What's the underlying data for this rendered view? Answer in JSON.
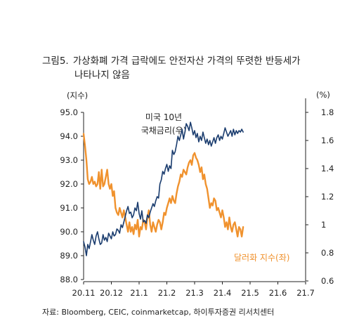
{
  "figure": {
    "number": "그림5.",
    "title_line1": "가상화폐 가격 급락에도 안전자산 가격의 뚜렷한 반등세가",
    "title_line2": "나타나지 않음",
    "left_unit": "(지수)",
    "right_unit": "(%)",
    "annotation_rate_line1": "미국 10년",
    "annotation_rate_line2": "국채금리(우)",
    "annotation_dollar": "달러화 지수(좌)",
    "source": "자료: Bloomberg, CEIC, coinmarketcap, 하이투자증권 리서치센터"
  },
  "colors": {
    "dollar": "#f0922e",
    "rate": "#1a3c6e",
    "axis": "#222222",
    "text": "#222222"
  },
  "chart_data": {
    "type": "line",
    "title": "가상화폐 가격 급락에도 안전자산 가격의 뚜렷한 반등세가 나타나지 않음",
    "x_tick_labels": [
      "20.11",
      "20.12",
      "21.1",
      "21.2",
      "21.3",
      "21.4",
      "21.5",
      "21.6",
      "21.7"
    ],
    "x_unit": "month index (0 = 20.11)",
    "xlim": [
      0,
      8
    ],
    "y_left": {
      "label": "(지수)",
      "ylim": [
        88.0,
        95.0
      ],
      "ticks": [
        "88.0",
        "89.0",
        "90.0",
        "91.0",
        "92.0",
        "93.0",
        "94.0",
        "95.0"
      ]
    },
    "y_right": {
      "label": "(%)",
      "ylim": [
        0.6,
        1.9
      ],
      "ticks": [
        "0.6",
        "0.8",
        "1",
        "1.2",
        "1.4",
        "1.6",
        "1.8"
      ]
    },
    "series": [
      {
        "name": "달러화 지수(좌)",
        "axis": "left",
        "color": "#f0922e",
        "x": [
          0.0,
          0.05,
          0.1,
          0.15,
          0.2,
          0.25,
          0.3,
          0.35,
          0.4,
          0.45,
          0.5,
          0.55,
          0.6,
          0.65,
          0.7,
          0.75,
          0.8,
          0.85,
          0.9,
          0.95,
          1.0,
          1.05,
          1.1,
          1.15,
          1.2,
          1.25,
          1.3,
          1.35,
          1.4,
          1.45,
          1.5,
          1.55,
          1.6,
          1.65,
          1.7,
          1.75,
          1.8,
          1.85,
          1.9,
          1.95,
          2.0,
          2.05,
          2.1,
          2.15,
          2.2,
          2.25,
          2.3,
          2.35,
          2.4,
          2.45,
          2.5,
          2.55,
          2.6,
          2.65,
          2.7,
          2.75,
          2.8,
          2.85,
          2.9,
          2.95,
          3.0,
          3.05,
          3.1,
          3.15,
          3.2,
          3.25,
          3.3,
          3.35,
          3.4,
          3.45,
          3.5,
          3.55,
          3.6,
          3.65,
          3.7,
          3.75,
          3.8,
          3.85,
          3.9,
          3.95,
          4.0,
          4.05,
          4.1,
          4.15,
          4.2,
          4.25,
          4.3,
          4.35,
          4.4,
          4.45,
          4.5,
          4.55,
          4.6,
          4.65,
          4.7,
          4.75,
          4.8,
          4.85,
          4.9,
          4.95,
          5.0,
          5.05,
          5.1,
          5.15,
          5.2,
          5.25,
          5.3,
          5.35,
          5.4,
          5.45,
          5.5,
          5.55,
          5.6,
          5.65,
          5.7,
          5.75
        ],
        "values": [
          94.1,
          93.6,
          93.0,
          92.2,
          92.0,
          92.1,
          92.3,
          92.0,
          92.1,
          91.9,
          92.0,
          92.5,
          91.8,
          92.6,
          91.9,
          92.0,
          92.3,
          92.6,
          92.0,
          91.8,
          92.0,
          91.5,
          91.7,
          91.0,
          90.8,
          90.7,
          91.0,
          90.8,
          90.6,
          90.9,
          90.6,
          90.3,
          90.0,
          90.4,
          90.0,
          90.2,
          89.9,
          90.3,
          90.1,
          90.5,
          89.8,
          90.2,
          90.1,
          90.5,
          90.4,
          90.1,
          90.6,
          90.9,
          90.3,
          90.0,
          90.4,
          90.2,
          90.0,
          90.3,
          90.5,
          90.4,
          90.1,
          90.4,
          90.8,
          90.7,
          91.0,
          91.2,
          91.4,
          91.2,
          91.5,
          91.3,
          91.2,
          91.6,
          91.9,
          92.1,
          92.4,
          92.3,
          92.6,
          92.5,
          92.4,
          92.7,
          92.9,
          93.0,
          92.8,
          93.2,
          93.3,
          93.1,
          93.0,
          92.8,
          92.5,
          92.7,
          92.2,
          92.4,
          92.0,
          91.8,
          91.4,
          91.0,
          91.2,
          91.1,
          91.4,
          91.3,
          90.9,
          91.0,
          90.8,
          90.6,
          90.9,
          90.6,
          90.2,
          90.4,
          90.1,
          90.6,
          90.2,
          90.0,
          90.3,
          90.4,
          90.1,
          89.8,
          90.2,
          90.1,
          89.8,
          90.2
        ]
      },
      {
        "name": "미국 10년 국채금리(우)",
        "axis": "right",
        "color": "#1a3c6e",
        "x": [
          0.0,
          0.05,
          0.1,
          0.15,
          0.2,
          0.25,
          0.3,
          0.35,
          0.4,
          0.45,
          0.5,
          0.55,
          0.6,
          0.65,
          0.7,
          0.75,
          0.8,
          0.85,
          0.9,
          0.95,
          1.0,
          1.05,
          1.1,
          1.15,
          1.2,
          1.25,
          1.3,
          1.35,
          1.4,
          1.45,
          1.5,
          1.55,
          1.6,
          1.65,
          1.7,
          1.75,
          1.8,
          1.85,
          1.9,
          1.95,
          2.0,
          2.05,
          2.1,
          2.15,
          2.2,
          2.25,
          2.3,
          2.35,
          2.4,
          2.45,
          2.5,
          2.55,
          2.6,
          2.65,
          2.7,
          2.75,
          2.8,
          2.85,
          2.9,
          2.95,
          3.0,
          3.05,
          3.1,
          3.15,
          3.2,
          3.25,
          3.3,
          3.35,
          3.4,
          3.45,
          3.5,
          3.55,
          3.6,
          3.65,
          3.7,
          3.75,
          3.8,
          3.85,
          3.9,
          3.95,
          4.0,
          4.05,
          4.1,
          4.15,
          4.2,
          4.25,
          4.3,
          4.35,
          4.4,
          4.45,
          4.5,
          4.55,
          4.6,
          4.65,
          4.7,
          4.75,
          4.8,
          4.85,
          4.9,
          4.95,
          5.0,
          5.05,
          5.1,
          5.15,
          5.2,
          5.25,
          5.3,
          5.35,
          5.4,
          5.45,
          5.5,
          5.55,
          5.6,
          5.65,
          5.7,
          5.75
        ],
        "values": [
          0.88,
          0.84,
          0.78,
          0.86,
          0.83,
          0.88,
          0.93,
          0.89,
          0.86,
          0.92,
          0.95,
          0.9,
          0.86,
          0.87,
          0.93,
          0.89,
          0.91,
          0.88,
          0.94,
          0.92,
          0.9,
          0.95,
          0.92,
          0.93,
          0.97,
          0.96,
          0.94,
          1.0,
          0.98,
          1.02,
          1.06,
          1.1,
          1.13,
          1.08,
          1.09,
          1.05,
          1.07,
          1.12,
          1.1,
          1.16,
          1.08,
          1.04,
          1.1,
          1.02,
          1.03,
          1.01,
          1.07,
          1.05,
          1.09,
          1.12,
          1.15,
          1.13,
          1.17,
          1.2,
          1.19,
          1.29,
          1.32,
          1.38,
          1.36,
          1.4,
          1.43,
          1.38,
          1.42,
          1.4,
          1.53,
          1.5,
          1.52,
          1.57,
          1.63,
          1.6,
          1.64,
          1.68,
          1.61,
          1.66,
          1.72,
          1.7,
          1.67,
          1.73,
          1.69,
          1.64,
          1.67,
          1.62,
          1.65,
          1.59,
          1.63,
          1.6,
          1.66,
          1.62,
          1.58,
          1.61,
          1.57,
          1.6,
          1.56,
          1.59,
          1.62,
          1.58,
          1.62,
          1.64,
          1.6,
          1.63,
          1.61,
          1.65,
          1.69,
          1.66,
          1.63,
          1.65,
          1.67,
          1.63,
          1.68,
          1.64,
          1.67,
          1.65,
          1.67,
          1.66,
          1.68,
          1.66
        ]
      }
    ]
  }
}
